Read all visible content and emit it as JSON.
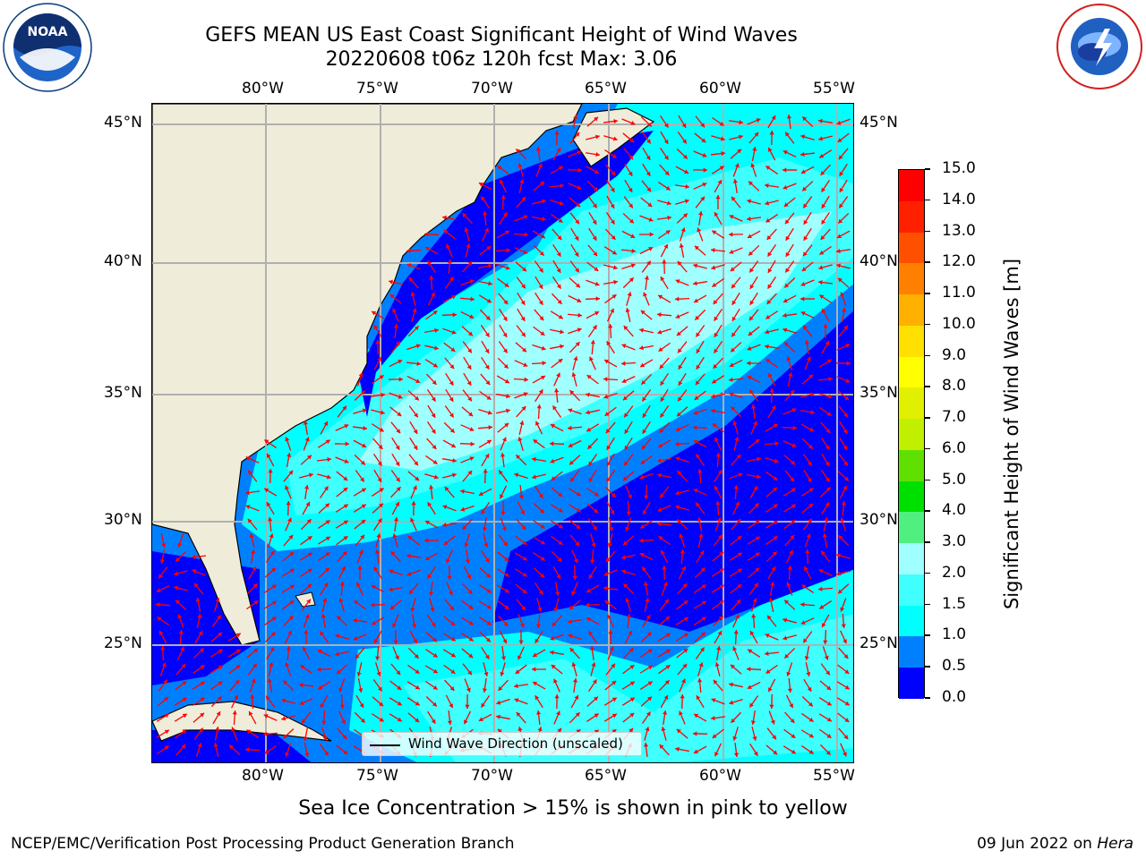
{
  "header": {
    "title_line1": "GEFS MEAN US East Coast Significant Height of Wind Waves",
    "title_line2": "20220608 t06z 120h fcst   Max: 3.06"
  },
  "logos": {
    "left": {
      "name": "NOAA",
      "text": "NOAA"
    },
    "right": {
      "name": "National Weather Service"
    }
  },
  "map": {
    "lon_labels": [
      "80°W",
      "75°W",
      "70°W",
      "65°W",
      "60°W",
      "55°W"
    ],
    "lat_labels": [
      "45°N",
      "40°N",
      "35°N",
      "30°N",
      "25°N"
    ],
    "legend_text": "Wind Wave Direction (unscaled)",
    "arrow_color": "#ff0000",
    "land_color": "#efedda"
  },
  "colorbar": {
    "label": "Significant Height of Wind Waves [m]",
    "ticks": [
      "0.0",
      "0.5",
      "1.0",
      "1.5",
      "2.0",
      "3.0",
      "4.0",
      "5.0",
      "6.0",
      "7.0",
      "8.0",
      "9.0",
      "10.0",
      "11.0",
      "12.0",
      "13.0",
      "14.0",
      "15.0"
    ],
    "colors": [
      "#0000ff",
      "#0080ff",
      "#00ffff",
      "#40ffff",
      "#a0ffff",
      "#50f080",
      "#00e000",
      "#60e000",
      "#c0f000",
      "#e0f000",
      "#ffff00",
      "#ffe000",
      "#ffb000",
      "#ff8000",
      "#ff5000",
      "#ff2000",
      "#ff0000"
    ]
  },
  "subtitle": "Sea Ice Concentration > 15% is shown in pink to yellow",
  "footer": {
    "left": "NCEP/EMC/Verification Post Processing Product Generation Branch",
    "right_prefix": "09 Jun 2022 on ",
    "right_italic": "Hera"
  }
}
